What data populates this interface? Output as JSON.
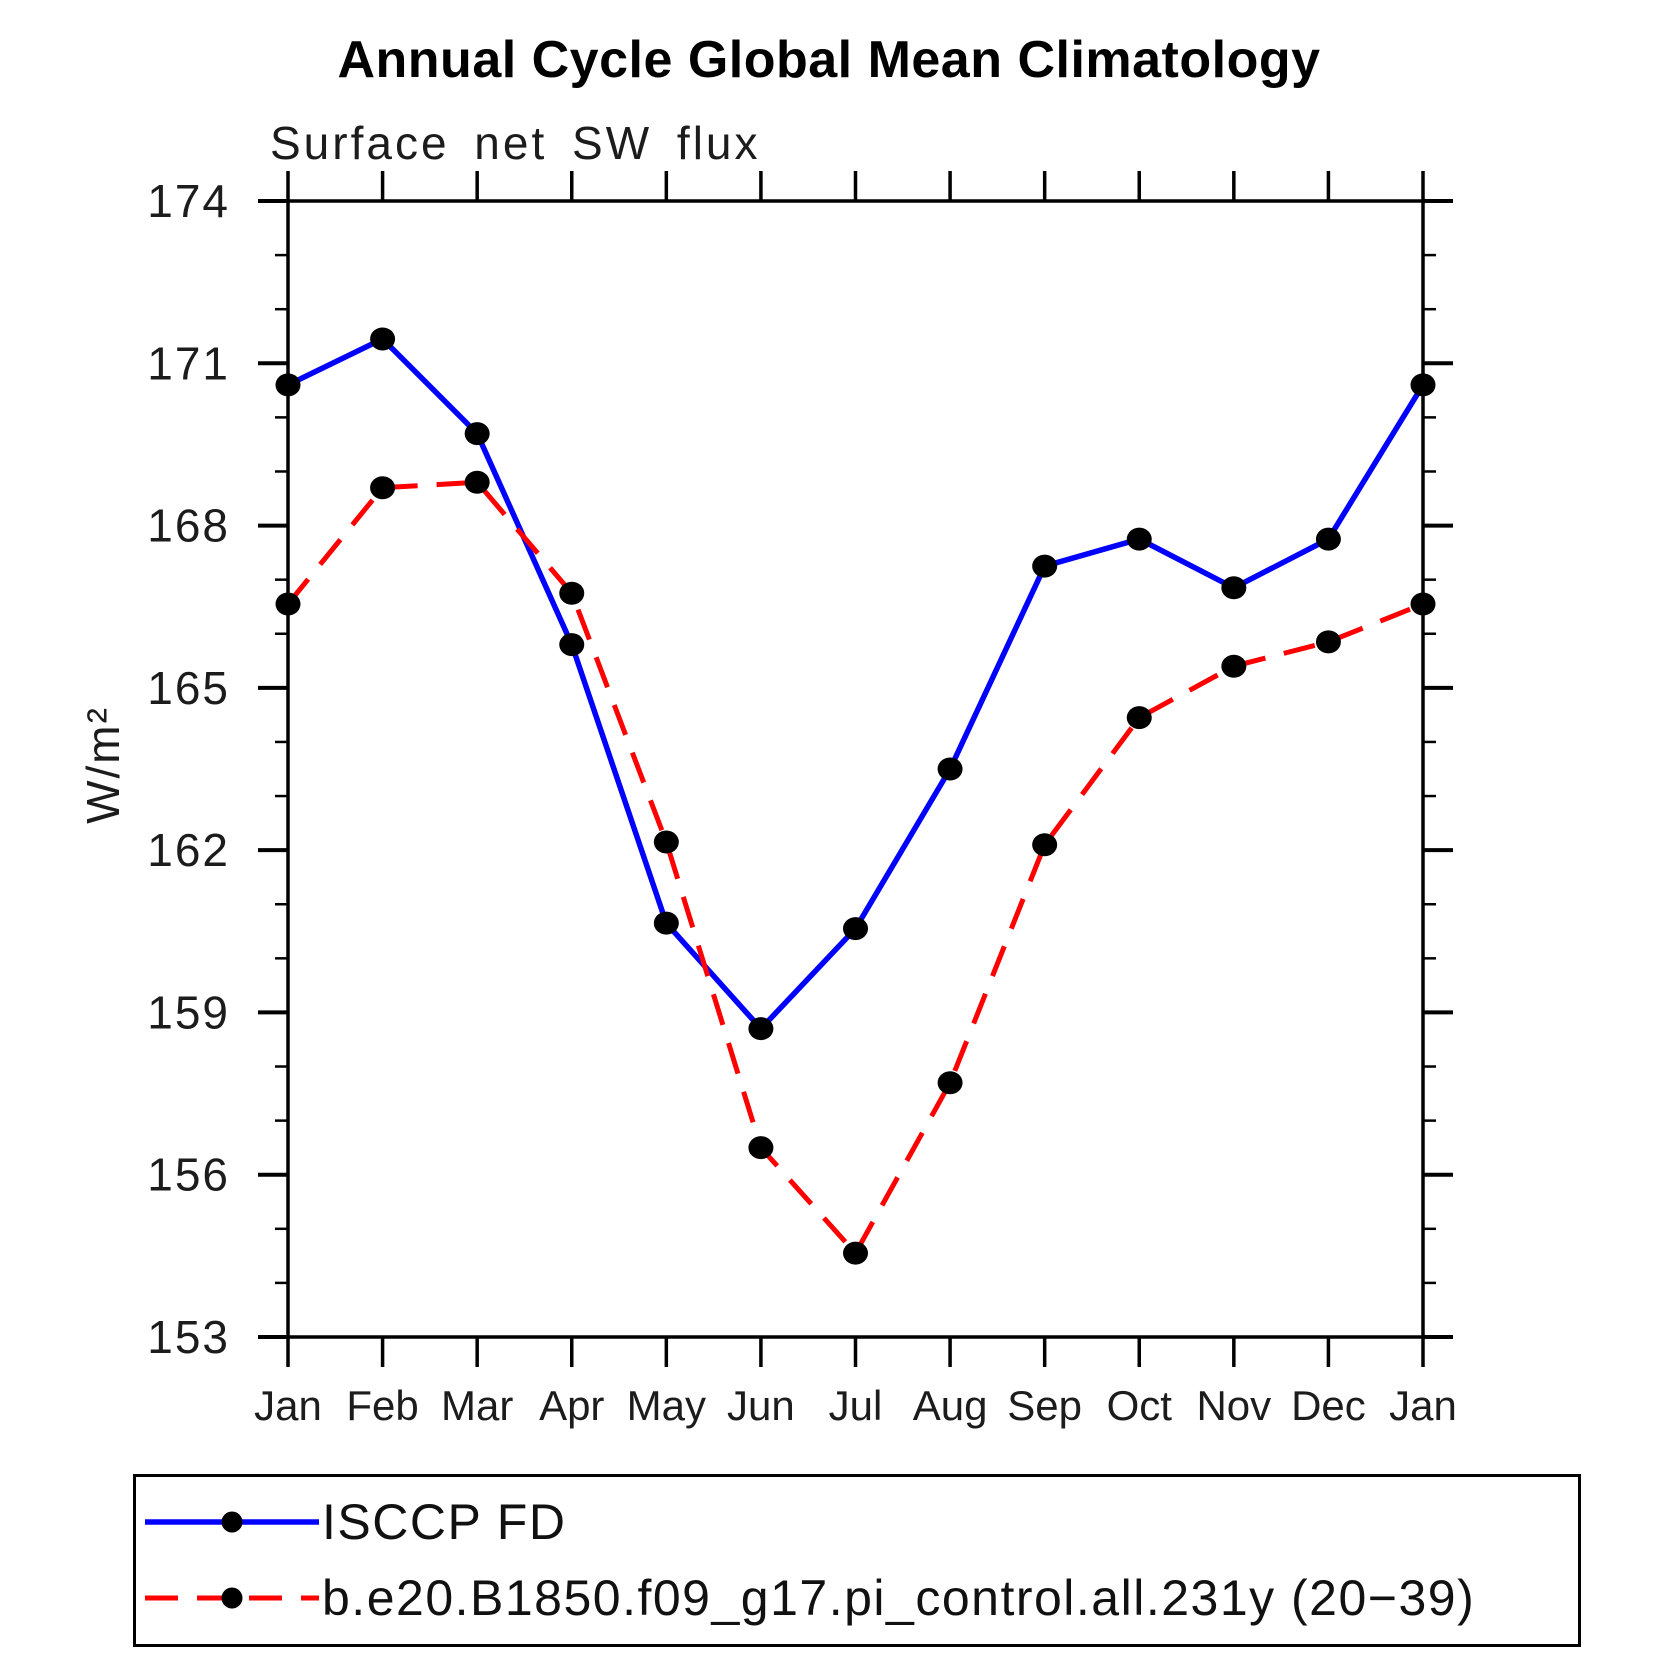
{
  "chart_data": {
    "type": "line",
    "title": "Annual Cycle Global Mean Climatology",
    "subtitle": "Surface net SW flux",
    "ylabel": "W/m²",
    "x_tick_labels": [
      "Jan",
      "Feb",
      "Mar",
      "Apr",
      "May",
      "Jun",
      "Jul",
      "Aug",
      "Sep",
      "Oct",
      "Nov",
      "Dec",
      "Jan"
    ],
    "y_ticks": [
      153,
      156,
      159,
      162,
      165,
      168,
      171,
      174
    ],
    "y_minor_step": 1,
    "ylim": [
      153,
      174
    ],
    "grid": false,
    "axis_color": "#000000",
    "legend_position": "bottom box",
    "series": [
      {
        "name": "ISCCP FD",
        "color": "#0000ff",
        "line_style": "solid",
        "marker": "filled-circle",
        "marker_color": "#000000",
        "values": [
          170.6,
          171.45,
          169.7,
          165.8,
          160.65,
          158.7,
          160.55,
          163.5,
          167.25,
          167.75,
          166.85,
          167.75,
          170.6
        ]
      },
      {
        "name": "b.e20.B1850.f09_g17.pi_control.all.231y (20−39)",
        "color": "#ff0000",
        "line_style": "dashed",
        "marker": "filled-circle",
        "marker_color": "#000000",
        "values": [
          166.55,
          168.7,
          168.8,
          166.75,
          162.15,
          156.5,
          154.55,
          157.7,
          162.1,
          164.45,
          165.4,
          165.85,
          166.55
        ]
      }
    ]
  }
}
